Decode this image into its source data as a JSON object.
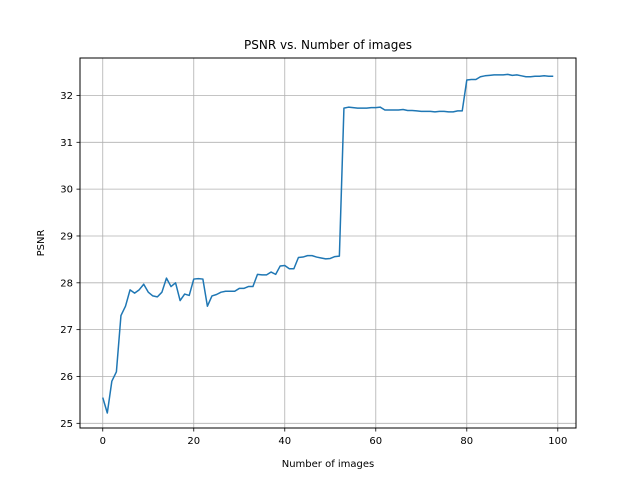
{
  "chart_data": {
    "type": "line",
    "title": "PSNR vs. Number of images",
    "xlabel": "Number of images",
    "ylabel": "PSNR",
    "xlim": [
      -5,
      104
    ],
    "ylim": [
      24.9,
      32.8
    ],
    "xticks": [
      0,
      20,
      40,
      60,
      80,
      100
    ],
    "yticks": [
      25,
      26,
      27,
      28,
      29,
      30,
      31,
      32
    ],
    "grid": true,
    "line_color": "#1f77b4",
    "series": [
      {
        "x": [
          0,
          1,
          2,
          3,
          4,
          5,
          6,
          7,
          8,
          9,
          10,
          11,
          12,
          13,
          14,
          15,
          16,
          17,
          18,
          19,
          20,
          21,
          22,
          23,
          24,
          25,
          26,
          27,
          28,
          29,
          30,
          31,
          32,
          33,
          34,
          35,
          36,
          37,
          38,
          39,
          40,
          41,
          42,
          43,
          44,
          45,
          46,
          47,
          48,
          49,
          50,
          51,
          52,
          53,
          54,
          55,
          56,
          57,
          58,
          59,
          60,
          61,
          62,
          63,
          64,
          65,
          66,
          67,
          68,
          69,
          70,
          71,
          72,
          73,
          74,
          75,
          76,
          77,
          78,
          79,
          80,
          81,
          82,
          83,
          84,
          85,
          86,
          87,
          88,
          89,
          90,
          91,
          92,
          93,
          94,
          95,
          96,
          97,
          98,
          99
        ],
        "values": [
          25.55,
          25.22,
          25.9,
          26.1,
          27.3,
          27.5,
          27.85,
          27.78,
          27.85,
          27.97,
          27.8,
          27.72,
          27.7,
          27.8,
          28.1,
          27.92,
          28.0,
          27.62,
          27.76,
          27.73,
          28.08,
          28.09,
          28.08,
          27.5,
          27.72,
          27.75,
          27.8,
          27.82,
          27.82,
          27.82,
          27.88,
          27.88,
          27.92,
          27.92,
          28.18,
          28.17,
          28.17,
          28.23,
          28.18,
          28.36,
          28.37,
          28.3,
          28.3,
          28.54,
          28.55,
          28.58,
          28.58,
          28.55,
          28.53,
          28.51,
          28.52,
          28.56,
          28.57,
          31.73,
          31.75,
          31.74,
          31.73,
          31.73,
          31.73,
          31.74,
          31.74,
          31.75,
          31.69,
          31.69,
          31.69,
          31.69,
          31.7,
          31.68,
          31.68,
          31.67,
          31.66,
          31.66,
          31.66,
          31.65,
          31.66,
          31.66,
          31.65,
          31.65,
          31.67,
          31.67,
          32.33,
          32.34,
          32.34,
          32.4,
          32.42,
          32.43,
          32.44,
          32.44,
          32.44,
          32.45,
          32.43,
          32.44,
          32.42,
          32.4,
          32.4,
          32.41,
          32.41,
          32.42,
          32.41,
          32.41
        ]
      }
    ]
  }
}
